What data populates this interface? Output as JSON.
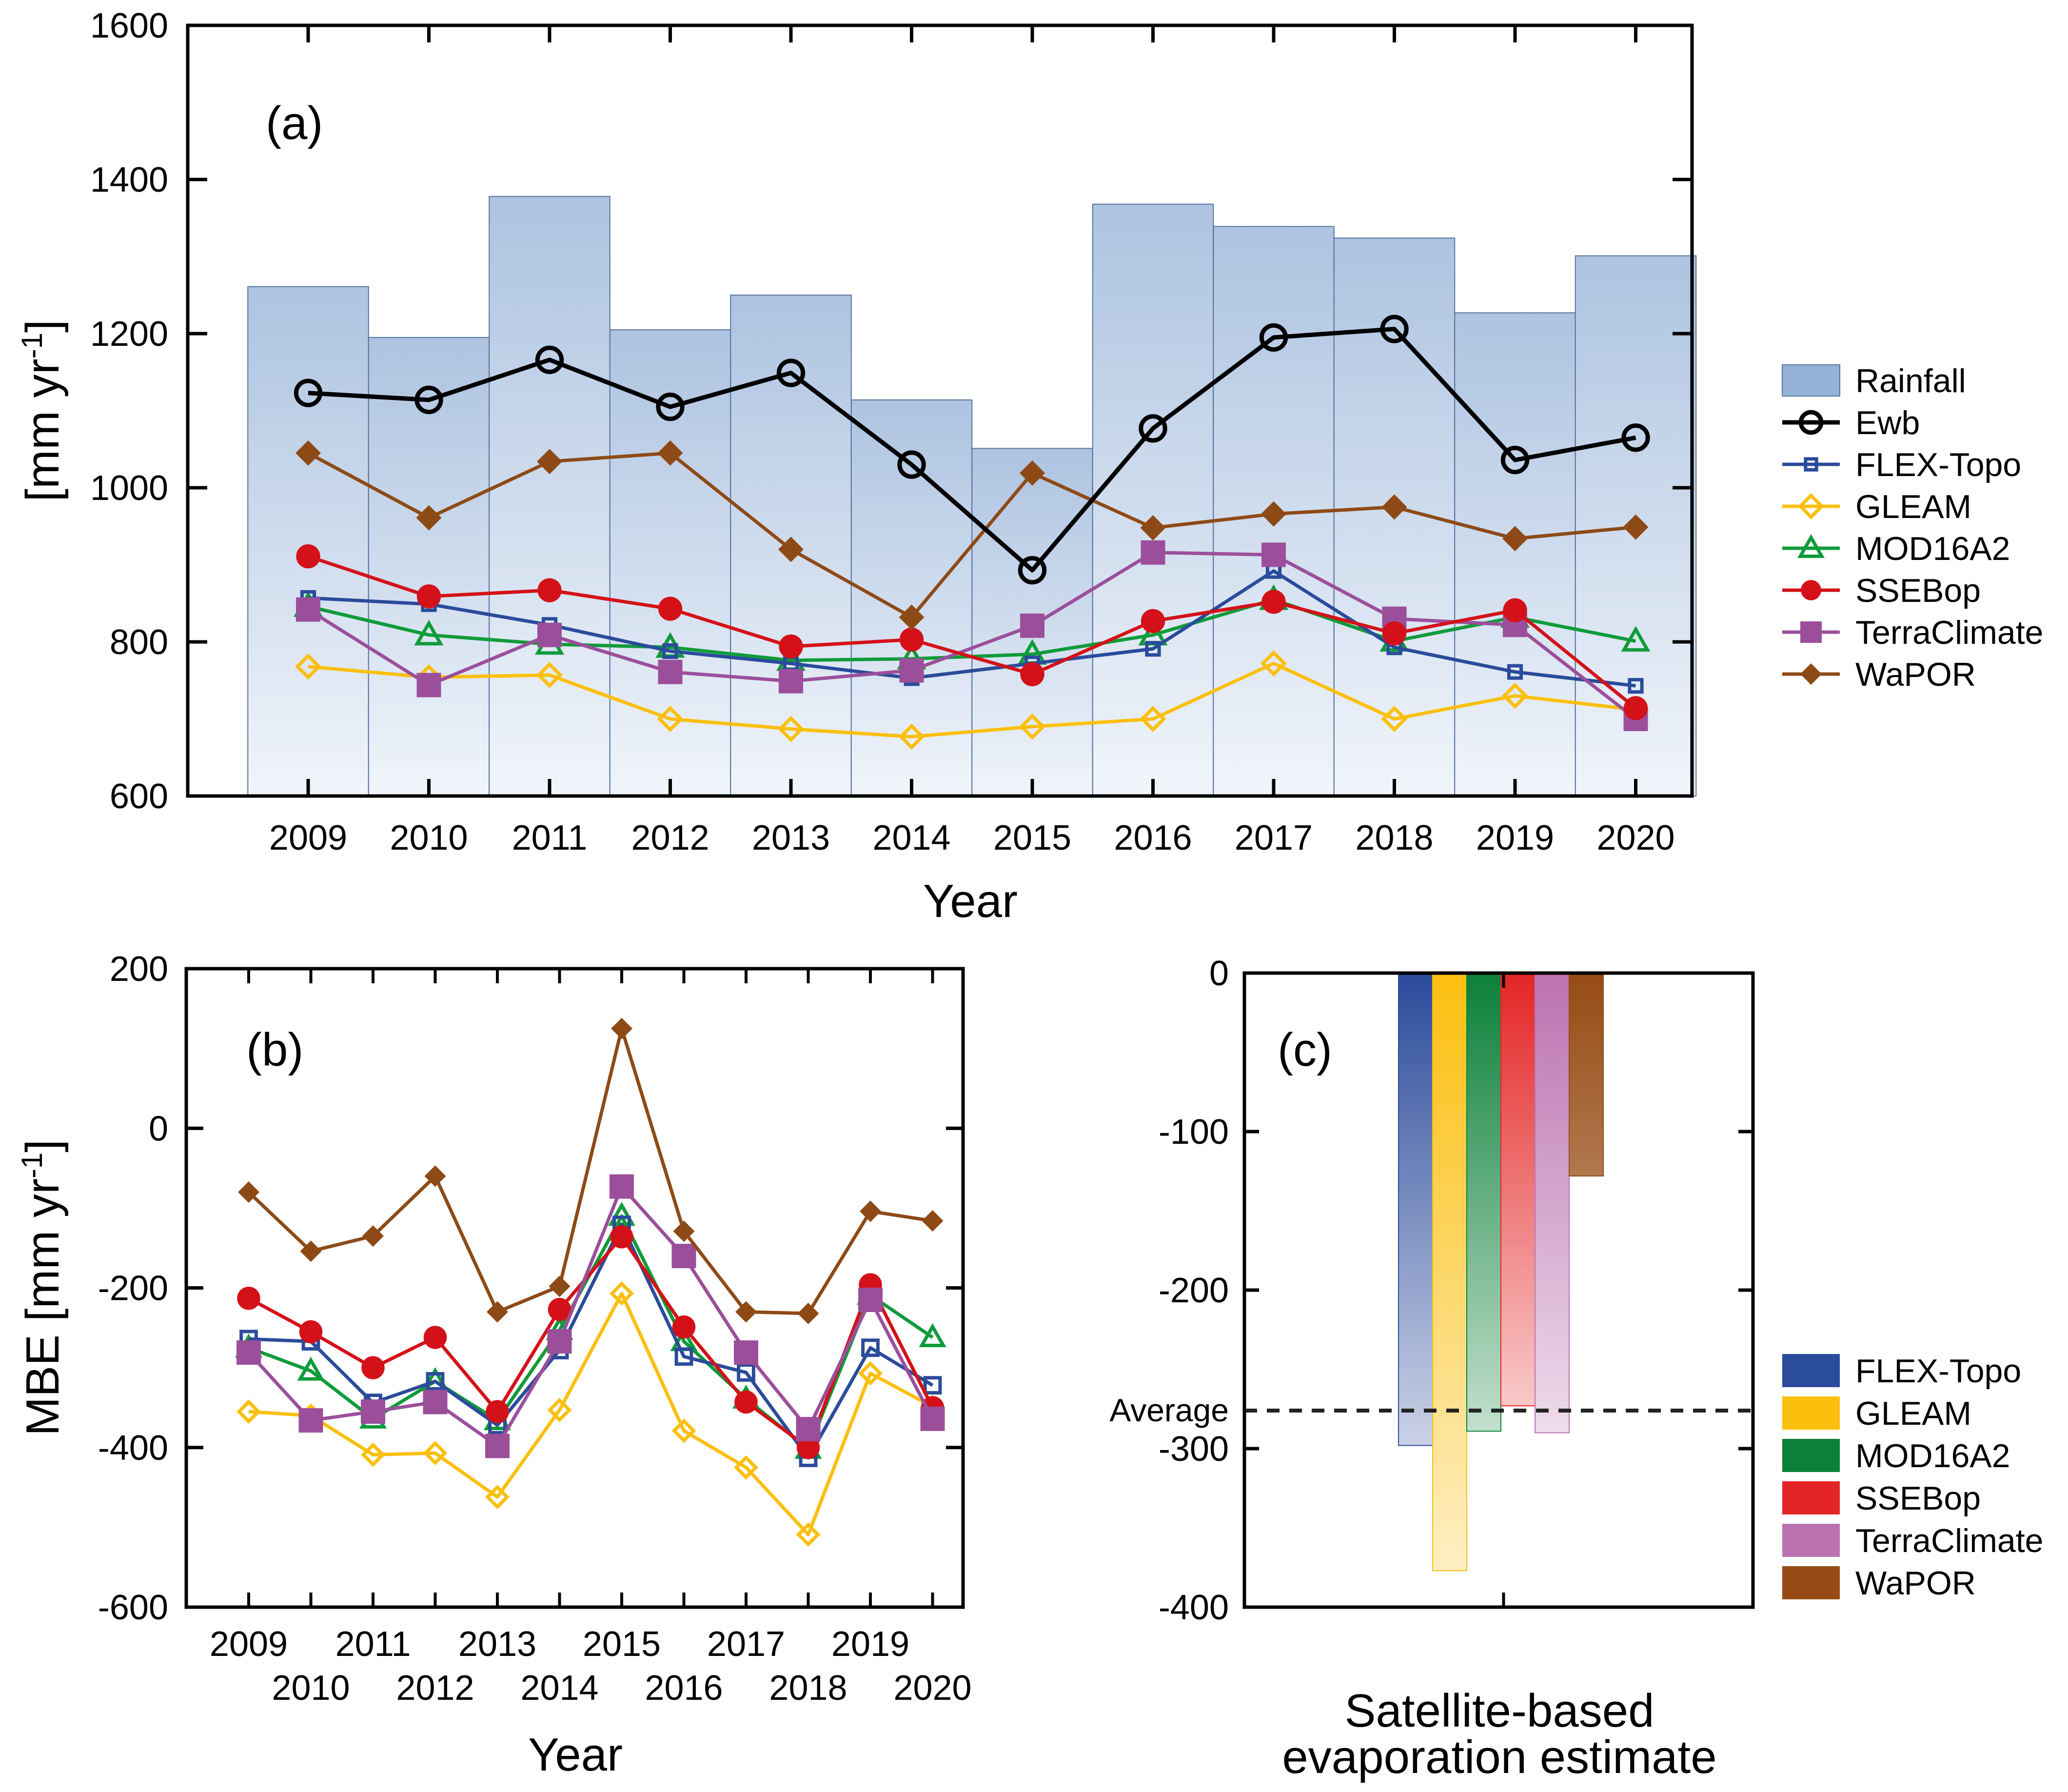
{
  "series_styles": {
    "Rainfall": {
      "color": "#95b3d7",
      "marker": "bar"
    },
    "Ewb": {
      "color": "#000000",
      "marker": "open-circle"
    },
    "FLEX-Topo": {
      "color": "#2b4b9b",
      "marker": "open-square"
    },
    "GLEAM": {
      "color": "#fbbf0e",
      "marker": "open-diamond"
    },
    "MOD16A2": {
      "color": "#0f9b3a",
      "marker": "open-triangle"
    },
    "SSEBop": {
      "color": "#d41119",
      "marker": "filled-circle"
    },
    "TerraClimate": {
      "color": "#9b4f9b",
      "marker": "filled-square"
    },
    "WaPOR": {
      "color": "#8e4a16",
      "marker": "filled-diamond"
    }
  },
  "bar_colors_c": {
    "FLEX-Topo": "#2b4b9b",
    "GLEAM": "#fbbf0e",
    "MOD16A2": "#0b8038",
    "SSEBop": "#e42525",
    "TerraClimate": "#bb72b0",
    "WaPOR": "#964b14"
  },
  "chart_data": [
    {
      "panel": "a",
      "type": "line",
      "panel_label": "(a)",
      "title": "",
      "xlabel": "Year",
      "ylabel": "[mm yr-1]",
      "ylabel_main": "[mm yr",
      "ylabel_sup": "-1",
      "ylabel_end": "]",
      "x": [
        2009,
        2010,
        2011,
        2012,
        2013,
        2014,
        2015,
        2016,
        2017,
        2018,
        2019,
        2020
      ],
      "x_tick_labels": [
        "2009",
        "2010",
        "2011",
        "2012",
        "2013",
        "2014",
        "2015",
        "2016",
        "2017",
        "2018",
        "2019",
        "2020"
      ],
      "ylim": [
        600,
        1600
      ],
      "y_ticks": [
        600,
        800,
        1000,
        1200,
        1400,
        1600
      ],
      "y_tick_labels": [
        "600",
        "800",
        "1000",
        "1200",
        "1400",
        "1600"
      ],
      "grid": false,
      "legend_position": "right",
      "legend": [
        "Rainfall",
        "Ewb",
        "FLEX-Topo",
        "GLEAM",
        "MOD16A2",
        "SSEBop",
        "TerraClimate",
        "WaPOR"
      ],
      "bars": {
        "name": "Rainfall",
        "values": [
          1261,
          1195,
          1378,
          1205,
          1250,
          1114,
          1051,
          1368,
          1339,
          1324,
          1227,
          1301
        ]
      },
      "series": [
        {
          "name": "Ewb",
          "values": [
            1123,
            1114,
            1166,
            1105,
            1149,
            1030,
            893,
            1077,
            1195,
            1206,
            1036,
            1065
          ]
        },
        {
          "name": "WaPOR",
          "values": [
            1045,
            961,
            1034,
            1045,
            920,
            832,
            1019,
            948,
            966,
            975,
            934,
            949
          ]
        },
        {
          "name": "SSEBop",
          "values": [
            911,
            859,
            867,
            843,
            794,
            803,
            758,
            827,
            852,
            811,
            841,
            714
          ]
        },
        {
          "name": "FLEX-Topo",
          "values": [
            857,
            849,
            822,
            788,
            772,
            753,
            772,
            791,
            892,
            793,
            761,
            743
          ]
        },
        {
          "name": "MOD16A2",
          "values": [
            846,
            809,
            797,
            793,
            776,
            778,
            784,
            809,
            855,
            801,
            832,
            801
          ]
        },
        {
          "name": "TerraClimate",
          "values": [
            842,
            744,
            809,
            761,
            749,
            763,
            821,
            916,
            913,
            830,
            822,
            700
          ]
        },
        {
          "name": "GLEAM",
          "values": [
            768,
            754,
            757,
            700,
            687,
            677,
            690,
            700,
            772,
            700,
            730,
            712
          ]
        }
      ]
    },
    {
      "panel": "b",
      "type": "line",
      "panel_label": "(b)",
      "title": "",
      "xlabel": "Year",
      "ylabel": "MBE [mm yr-1]",
      "ylabel_main": "MBE  [mm yr",
      "ylabel_sup": "-1",
      "ylabel_end": "]",
      "x": [
        2009,
        2010,
        2011,
        2012,
        2013,
        2014,
        2015,
        2016,
        2017,
        2018,
        2019,
        2020
      ],
      "x_tick_labels": [
        "2009",
        "2010",
        "2011",
        "2012",
        "2013",
        "2014",
        "2015",
        "2016",
        "2017",
        "2018",
        "2019",
        "2020"
      ],
      "ylim": [
        -600,
        200
      ],
      "y_ticks": [
        -600,
        -400,
        -200,
        0,
        200
      ],
      "y_tick_labels": [
        "-600",
        "-400",
        "-200",
        "0",
        "200"
      ],
      "grid": false,
      "series": [
        {
          "name": "WaPOR",
          "values": [
            -80,
            -154,
            -135,
            -60,
            -230,
            -198,
            125,
            -129,
            -230,
            -232,
            -104,
            -116
          ]
        },
        {
          "name": "SSEBop",
          "values": [
            -213,
            -255,
            -300,
            -262,
            -355,
            -227,
            -136,
            -249,
            -343,
            -400,
            -196,
            -350
          ]
        },
        {
          "name": "FLEX-Topo",
          "values": [
            -264,
            -267,
            -344,
            -317,
            -372,
            -278,
            -121,
            -286,
            -306,
            -413,
            -275,
            -322
          ]
        },
        {
          "name": "MOD16A2",
          "values": [
            -275,
            -304,
            -364,
            -317,
            -366,
            -253,
            -110,
            -267,
            -339,
            -402,
            -209,
            -262
          ]
        },
        {
          "name": "TerraClimate",
          "values": [
            -281,
            -366,
            -355,
            -343,
            -398,
            -267,
            -73,
            -160,
            -281,
            -377,
            -215,
            -364
          ]
        },
        {
          "name": "GLEAM",
          "values": [
            -355,
            -360,
            -409,
            -407,
            -462,
            -353,
            -207,
            -379,
            -425,
            -509,
            -307,
            -349
          ]
        }
      ]
    },
    {
      "panel": "c",
      "type": "bar",
      "panel_label": "(c)",
      "title": "",
      "xlabel_line1": "Satellite-based",
      "xlabel_line2": "evaporation estimate",
      "xlabel": "Satellite-based evaporation estimate",
      "ylabel": "",
      "categories": [
        "FLEX-Topo",
        "GLEAM",
        "MOD16A2",
        "SSEBop",
        "TerraClimate",
        "WaPOR"
      ],
      "values": [
        -298,
        -377,
        -289,
        -273,
        -290,
        -128
      ],
      "ylim": [
        -400,
        0
      ],
      "y_ticks": [
        -400,
        -300,
        -200,
        -100,
        0
      ],
      "y_tick_labels": [
        "-400",
        "-300",
        "-200",
        "-100",
        "0"
      ],
      "reference_line": {
        "label": "Average",
        "value": -276,
        "style": "dashed"
      },
      "grid": false,
      "legend_position": "right",
      "legend": [
        "FLEX-Topo",
        "GLEAM",
        "MOD16A2",
        "SSEBop",
        "TerraClimate",
        "WaPOR"
      ]
    }
  ]
}
